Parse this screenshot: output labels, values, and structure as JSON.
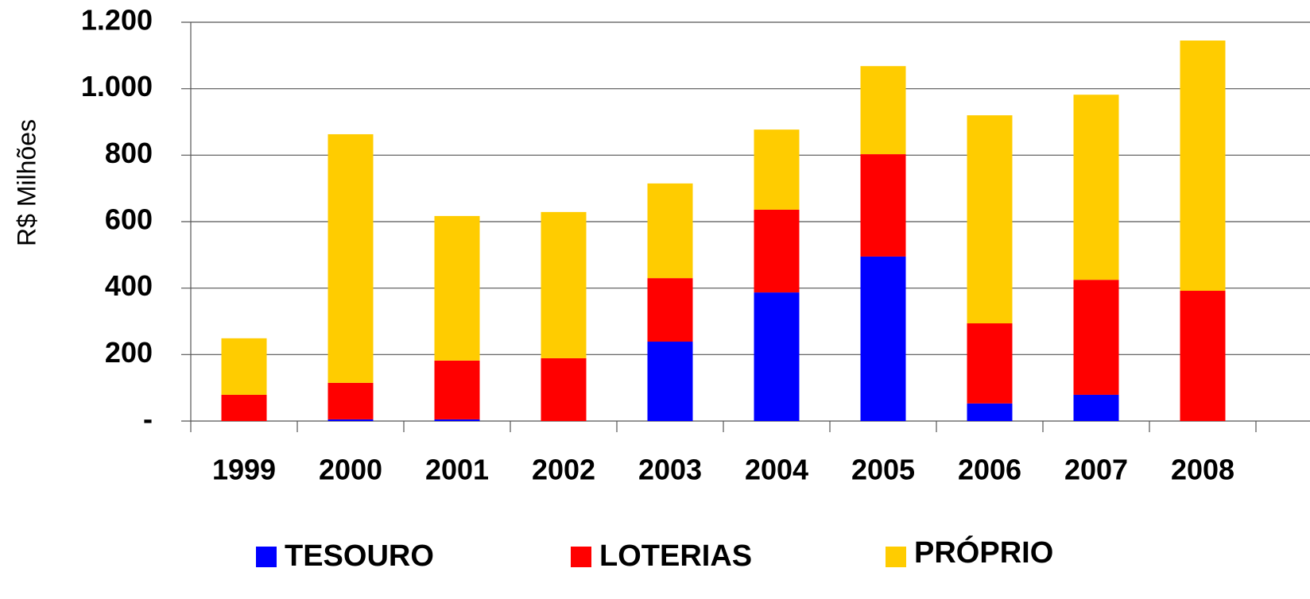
{
  "chart_data": {
    "type": "stacked_bar",
    "y_label": "R$ Milhões",
    "categories": [
      "1999",
      "2000",
      "2001",
      "2002",
      "2003",
      "2004",
      "2005",
      "2006",
      "2007",
      "2008"
    ],
    "series": [
      {
        "name": "TESOURO",
        "color": "#0000ff",
        "values": [
          0,
          5,
          5,
          0,
          239,
          387,
          495,
          53,
          79,
          0
        ]
      },
      {
        "name": "LOTERIAS",
        "color": "#ff0000",
        "values": [
          79,
          110,
          177,
          189,
          191,
          249,
          308,
          241,
          346,
          392
        ]
      },
      {
        "name": "PRÓPRIO",
        "color": "#ffcc00",
        "values": [
          170,
          748,
          435,
          440,
          285,
          241,
          265,
          626,
          557,
          753
        ]
      }
    ],
    "ylim": [
      0,
      1200
    ],
    "yticks": [
      {
        "value": 0,
        "label": "-"
      },
      200,
      400,
      600,
      800,
      {
        "value": 1000,
        "label": "1.000"
      },
      {
        "value": 1200,
        "label": "1.200"
      }
    ],
    "grid": true,
    "legend": "bottom"
  }
}
